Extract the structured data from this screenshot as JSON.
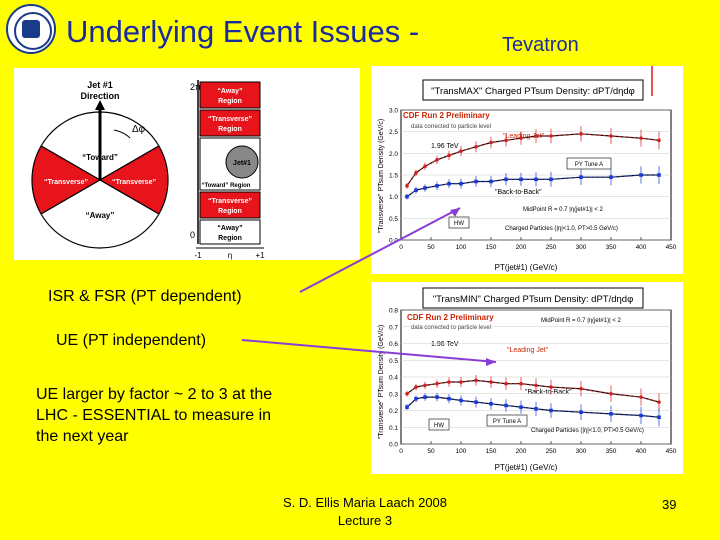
{
  "slide": {
    "title": "Underlying Event Issues -",
    "subtitle": "Tevatron",
    "bullets": {
      "isr": "ISR & FSR (PT dependent)",
      "ue_ind": "UE (PT independent)",
      "ue_larger": "UE larger by factor ~ 2 to 3 at the LHC - ESSENTIAL to measure in the next year"
    },
    "footer": {
      "line1": "S. D. Ellis   Maria Laach 2008",
      "line2": "Lecture 3"
    },
    "page_number": "39"
  },
  "diagram": {
    "jet_label_1": "Jet #1",
    "jet_label_2": "Direction",
    "dphi": "Δφ",
    "toward": "“Toward”",
    "transverse": "“Transverse”",
    "away": "“Away”",
    "away_region": "“Away”",
    "region": "Region",
    "transverse_region": "“Transverse”",
    "jet1": "Jet#1",
    "toward_region": "“Toward” Region",
    "two_pi": "2π",
    "zero": "0",
    "eta": "η",
    "minus_one": "-1",
    "plus_one": "+1"
  },
  "chart_data": [
    {
      "type": "scatter",
      "title": "\"TransMAX\" Charged PTsum Density: dPT/dηdφ",
      "ylabel": "\"Transverse\" PTsum Density (GeV/c)",
      "xlabel": "PT(jet#1) (GeV/c)",
      "xlim": [
        0,
        450
      ],
      "ylim": [
        0,
        3
      ],
      "xticks": [
        "0",
        "50",
        "100",
        "150",
        "200",
        "250",
        "300",
        "350",
        "400",
        "450"
      ],
      "yticks": [
        "0.0",
        "0.5",
        "1.0",
        "1.5",
        "2.0",
        "2.5",
        "3.0"
      ],
      "annotations": [
        "CDF Run 2 Preliminary",
        "data corrected to particle level",
        "1.96 TeV",
        "\"Leading Jet\"",
        "PY Tune A",
        "\"Back-to-Back\"",
        "HW",
        "MidPoint R = 0.7 |η(jet#1)| < 2",
        "Charged Particles (|η|<1.0, PT>0.5 GeV/c)"
      ],
      "series": [
        {
          "name": "\"Leading Jet\"",
          "x": [
            10,
            25,
            40,
            60,
            80,
            100,
            125,
            150,
            175,
            200,
            225,
            250,
            300,
            350,
            400,
            430
          ],
          "y": [
            1.25,
            1.55,
            1.7,
            1.85,
            1.95,
            2.05,
            2.15,
            2.25,
            2.3,
            2.35,
            2.4,
            2.4,
            2.45,
            2.4,
            2.35,
            2.3
          ]
        },
        {
          "name": "\"Back-to-Back\"",
          "x": [
            10,
            25,
            40,
            60,
            80,
            100,
            125,
            150,
            175,
            200,
            225,
            250,
            300,
            350,
            400,
            430
          ],
          "y": [
            1.0,
            1.15,
            1.2,
            1.25,
            1.3,
            1.3,
            1.35,
            1.35,
            1.4,
            1.4,
            1.4,
            1.4,
            1.45,
            1.45,
            1.5,
            1.5
          ]
        }
      ]
    },
    {
      "type": "scatter",
      "title": "\"TransMIN\" Charged PTsum Density: dPT/dηdφ",
      "ylabel": "\"Transverse\" PTsum Density (GeV/c)",
      "xlabel": "PT(jet#1) (GeV/c)",
      "xlim": [
        0,
        450
      ],
      "ylim": [
        0,
        0.8
      ],
      "xticks": [
        "0",
        "50",
        "100",
        "150",
        "200",
        "250",
        "300",
        "350",
        "400",
        "450"
      ],
      "yticks": [
        "0.0",
        "0.1",
        "0.2",
        "0.3",
        "0.4",
        "0.5",
        "0.6",
        "0.7",
        "0.8"
      ],
      "annotations": [
        "CDF Run 2 Preliminary",
        "data corrected to particle level",
        "1.96 TeV",
        "MidPoint R = 0.7 |η(jet#1)| < 2",
        "\"Leading Jet\"",
        "\"Back-to-Back\"",
        "HW",
        "PY Tune A",
        "Charged Particles (|η|<1.0, PT>0.5 GeV/c)"
      ],
      "series": [
        {
          "name": "\"Leading Jet\"",
          "x": [
            10,
            25,
            40,
            60,
            80,
            100,
            125,
            150,
            175,
            200,
            225,
            250,
            300,
            350,
            400,
            430
          ],
          "y": [
            0.3,
            0.34,
            0.35,
            0.36,
            0.37,
            0.37,
            0.38,
            0.37,
            0.36,
            0.36,
            0.35,
            0.34,
            0.33,
            0.3,
            0.28,
            0.25
          ]
        },
        {
          "name": "\"Back-to-Back\"",
          "x": [
            10,
            25,
            40,
            60,
            80,
            100,
            125,
            150,
            175,
            200,
            225,
            250,
            300,
            350,
            400,
            430
          ],
          "y": [
            0.22,
            0.27,
            0.28,
            0.28,
            0.27,
            0.26,
            0.25,
            0.24,
            0.23,
            0.22,
            0.21,
            0.2,
            0.19,
            0.18,
            0.17,
            0.16
          ]
        }
      ]
    }
  ]
}
